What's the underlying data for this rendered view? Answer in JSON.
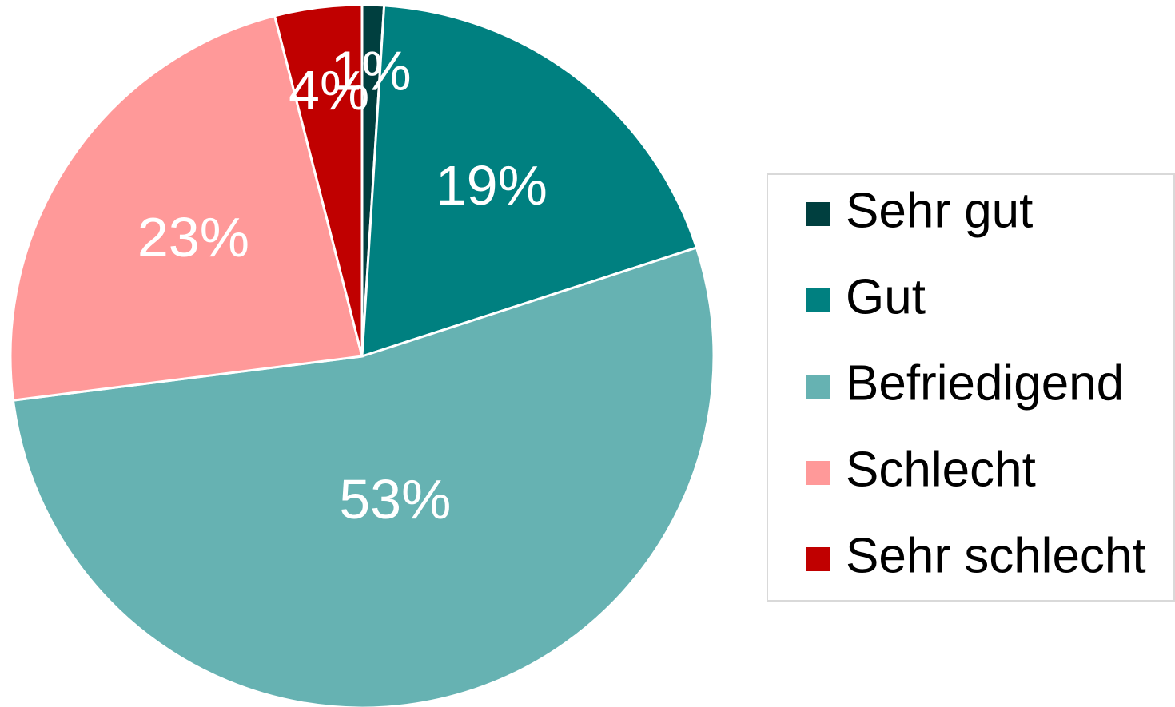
{
  "chart_data": {
    "type": "pie",
    "categories": [
      "Sehr gut",
      "Gut",
      "Befriedigend",
      "Schlecht",
      "Sehr schlecht"
    ],
    "values": [
      1,
      19,
      53,
      23,
      4
    ],
    "value_labels": [
      "1%",
      "19%",
      "53%",
      "23%",
      "4%"
    ],
    "colors": [
      "#003f3f",
      "#008080",
      "#66b2b2",
      "#ff9999",
      "#c00000"
    ],
    "legend": "right"
  }
}
